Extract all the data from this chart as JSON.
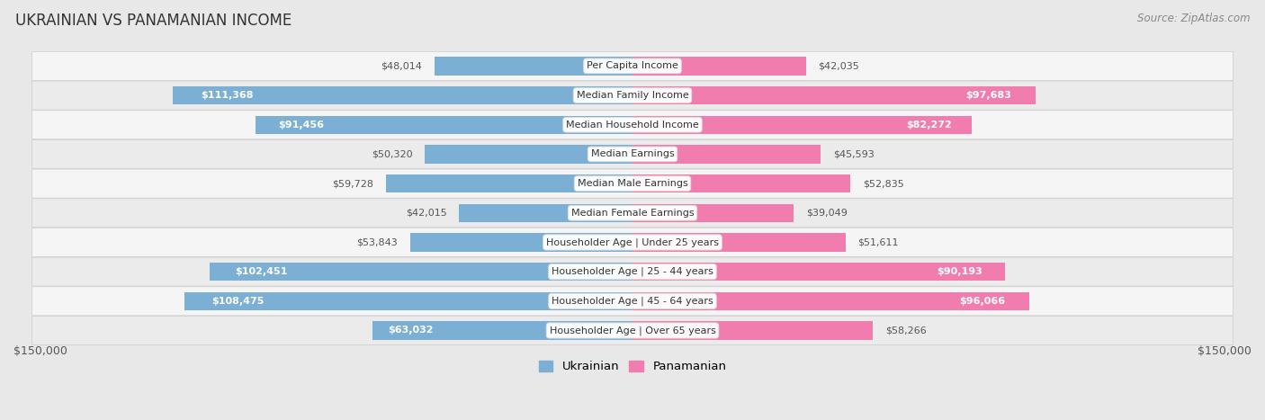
{
  "title": "UKRAINIAN VS PANAMANIAN INCOME",
  "source": "Source: ZipAtlas.com",
  "categories": [
    "Per Capita Income",
    "Median Family Income",
    "Median Household Income",
    "Median Earnings",
    "Median Male Earnings",
    "Median Female Earnings",
    "Householder Age | Under 25 years",
    "Householder Age | 25 - 44 years",
    "Householder Age | 45 - 64 years",
    "Householder Age | Over 65 years"
  ],
  "ukrainian_values": [
    48014,
    111368,
    91456,
    50320,
    59728,
    42015,
    53843,
    102451,
    108475,
    63032
  ],
  "panamanian_values": [
    42035,
    97683,
    82272,
    45593,
    52835,
    39049,
    51611,
    90193,
    96066,
    58266
  ],
  "ukrainian_labels": [
    "$48,014",
    "$111,368",
    "$91,456",
    "$50,320",
    "$59,728",
    "$42,015",
    "$53,843",
    "$102,451",
    "$108,475",
    "$63,032"
  ],
  "panamanian_labels": [
    "$42,035",
    "$97,683",
    "$82,272",
    "$45,593",
    "$52,835",
    "$39,049",
    "$51,611",
    "$90,193",
    "$96,066",
    "$58,266"
  ],
  "ukrainian_color": "#7BAFD4",
  "panamanian_color": "#F07DAE",
  "max_value": 150000,
  "legend_ukrainian": "Ukrainian",
  "legend_panamanian": "Panamanian",
  "xlabel_left": "$150,000",
  "xlabel_right": "$150,000",
  "fig_bg": "#e8e8e8",
  "row_bg_light": "#f2f2f2",
  "row_bg_dark": "#e4e4e4",
  "inside_label_threshold": 60000,
  "category_label_fontsize": 8.0,
  "value_label_fontsize": 8.0
}
